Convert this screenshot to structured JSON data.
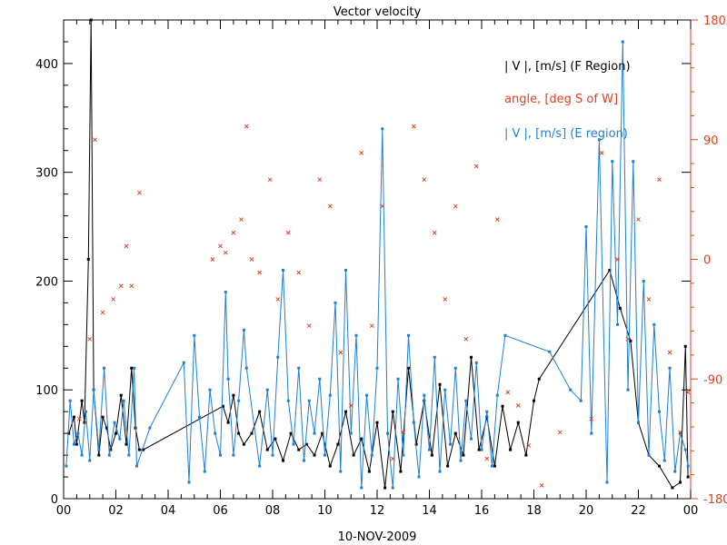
{
  "chart_data": {
    "type": "line",
    "title": "Vector velocity",
    "xlabel": "10-NOV-2009",
    "x_range_hours": [
      0,
      24
    ],
    "x_tick_labels": [
      "00",
      "02",
      "04",
      "06",
      "08",
      "10",
      "12",
      "14",
      "16",
      "18",
      "20",
      "22",
      "00"
    ],
    "y_left": {
      "range": [
        0,
        440
      ],
      "ticks": [
        0,
        100,
        200,
        300,
        400
      ]
    },
    "y_right": {
      "range": [
        -180,
        180
      ],
      "tick_labels": [
        "180",
        "90",
        "0",
        "-90",
        "-180"
      ],
      "color": "#e0401f"
    },
    "legend": [
      {
        "text": "| V |, [m/s] (F Region)",
        "color": "#000000"
      },
      {
        "text": "angle, [deg S of W]",
        "color": "#e0401f"
      },
      {
        "text": "| V |, [m/s] (E region)",
        "color": "#1f7fd6"
      }
    ],
    "series": [
      {
        "key": "f_region",
        "axis": "left",
        "color": "#000000",
        "x": [
          0.2,
          0.4,
          0.5,
          0.7,
          0.8,
          0.95,
          1.05,
          1.15,
          1.35,
          1.5,
          1.65,
          1.8,
          2.0,
          2.2,
          2.4,
          2.6,
          2.75,
          2.9,
          3.05,
          6.1,
          6.3,
          6.5,
          6.7,
          6.9,
          7.2,
          7.5,
          7.8,
          8.1,
          8.4,
          8.7,
          9.0,
          9.3,
          9.6,
          9.9,
          10.2,
          10.5,
          10.8,
          11.1,
          11.4,
          11.7,
          12.0,
          12.3,
          12.6,
          12.9,
          13.2,
          13.5,
          13.8,
          14.1,
          14.4,
          14.7,
          15.0,
          15.3,
          15.6,
          15.9,
          16.2,
          16.5,
          16.8,
          17.1,
          17.4,
          17.7,
          18.0,
          18.2,
          20.9,
          21.3,
          21.7,
          22.0,
          22.4,
          22.8,
          23.3,
          23.6,
          23.8,
          23.9
        ],
        "y": [
          60,
          75,
          50,
          90,
          70,
          220,
          440,
          100,
          40,
          75,
          65,
          45,
          60,
          95,
          50,
          120,
          65,
          45,
          45,
          85,
          70,
          95,
          60,
          50,
          60,
          80,
          45,
          55,
          35,
          60,
          45,
          50,
          40,
          60,
          30,
          50,
          80,
          40,
          55,
          25,
          70,
          10,
          80,
          25,
          120,
          50,
          90,
          40,
          105,
          30,
          60,
          40,
          130,
          45,
          75,
          30,
          85,
          45,
          70,
          40,
          90,
          110,
          210,
          175,
          145,
          70,
          40,
          30,
          10,
          15,
          140,
          20
        ]
      },
      {
        "key": "e_region",
        "axis": "left",
        "color": "#1f7fd6",
        "x": [
          0.1,
          0.25,
          0.4,
          0.55,
          0.7,
          0.85,
          1.0,
          1.15,
          1.35,
          1.55,
          1.75,
          1.95,
          2.15,
          2.3,
          2.5,
          2.7,
          2.8,
          3.3,
          4.6,
          4.8,
          5.0,
          5.2,
          5.4,
          5.6,
          5.8,
          6.0,
          6.2,
          6.3,
          6.5,
          6.7,
          6.9,
          7.0,
          7.5,
          7.8,
          8.0,
          8.2,
          8.4,
          8.6,
          8.8,
          9.0,
          9.2,
          9.4,
          9.6,
          9.8,
          10.0,
          10.2,
          10.4,
          10.6,
          10.8,
          11.0,
          11.2,
          11.4,
          11.6,
          11.8,
          12.0,
          12.2,
          12.4,
          12.6,
          12.8,
          13.0,
          13.2,
          13.4,
          13.6,
          13.8,
          14.0,
          14.2,
          14.4,
          14.6,
          14.8,
          15.0,
          15.2,
          15.4,
          15.6,
          15.8,
          16.0,
          16.2,
          16.4,
          16.6,
          16.9,
          18.6,
          19.4,
          19.8,
          20.0,
          20.2,
          20.5,
          20.8,
          21.0,
          21.2,
          21.4,
          21.6,
          21.8,
          22.0,
          22.2,
          22.4,
          22.6,
          22.8,
          23.0,
          23.2,
          23.4,
          23.6,
          23.8,
          23.9
        ],
        "y": [
          30,
          90,
          50,
          60,
          40,
          80,
          35,
          100,
          45,
          120,
          40,
          70,
          55,
          90,
          40,
          120,
          30,
          65,
          125,
          15,
          150,
          75,
          25,
          100,
          60,
          40,
          190,
          110,
          40,
          90,
          155,
          120,
          30,
          100,
          40,
          130,
          210,
          90,
          50,
          120,
          35,
          90,
          60,
          110,
          40,
          95,
          180,
          25,
          210,
          60,
          150,
          10,
          95,
          40,
          120,
          340,
          60,
          10,
          110,
          40,
          150,
          70,
          20,
          95,
          45,
          130,
          25,
          100,
          50,
          120,
          35,
          90,
          55,
          125,
          45,
          80,
          30,
          95,
          150,
          135,
          100,
          90,
          250,
          60,
          330,
          15,
          310,
          160,
          420,
          100,
          310,
          70,
          200,
          40,
          160,
          80,
          35,
          120,
          25,
          60,
          45,
          30
        ]
      },
      {
        "key": "angle",
        "axis": "right",
        "color": "#e0401f",
        "x": [
          0.6,
          1.0,
          1.2,
          1.5,
          1.9,
          2.2,
          2.4,
          2.6,
          2.9,
          5.7,
          6.0,
          6.2,
          6.5,
          6.8,
          7.0,
          7.2,
          7.5,
          7.9,
          8.2,
          8.6,
          9.0,
          9.4,
          9.8,
          10.2,
          10.6,
          11.0,
          11.4,
          11.8,
          12.2,
          12.6,
          13.0,
          13.4,
          13.8,
          14.2,
          14.6,
          15.0,
          15.4,
          15.8,
          16.2,
          16.6,
          17.0,
          17.4,
          17.8,
          18.3,
          19.0,
          20.2,
          20.6,
          21.2,
          21.6,
          22.0,
          22.4,
          22.8,
          23.2,
          23.6,
          23.9
        ],
        "y": [
          -120,
          -60,
          90,
          -40,
          -30,
          -20,
          10,
          -20,
          50,
          0,
          10,
          5,
          20,
          30,
          100,
          0,
          -10,
          60,
          -30,
          20,
          -10,
          -50,
          60,
          40,
          -70,
          -110,
          80,
          -50,
          40,
          -150,
          -130,
          100,
          60,
          20,
          -30,
          40,
          -60,
          70,
          -150,
          30,
          -100,
          -110,
          -140,
          -170,
          -130,
          -120,
          80,
          0,
          -60,
          30,
          -30,
          60,
          -70,
          -130,
          -100
        ]
      }
    ]
  }
}
